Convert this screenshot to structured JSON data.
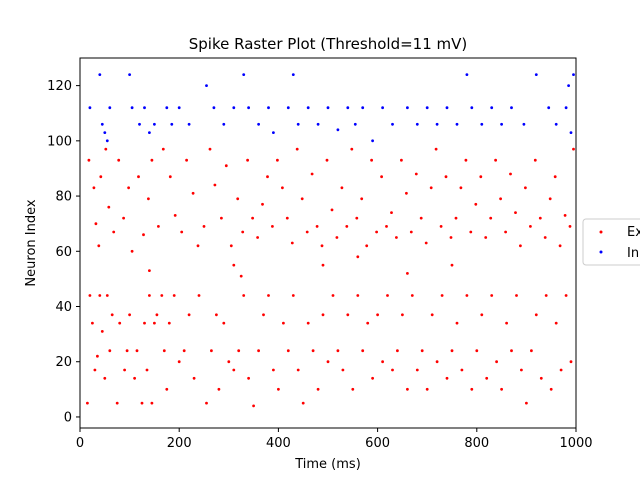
{
  "chart_data": {
    "type": "scatter",
    "title": "Spike Raster Plot (Threshold=11 mV)",
    "xlabel": "Time (ms)",
    "ylabel": "Neuron Index",
    "xlim": [
      0,
      1000
    ],
    "ylim": [
      -4,
      130
    ],
    "xticks": [
      0,
      200,
      400,
      600,
      800,
      1000
    ],
    "yticks": [
      0,
      20,
      40,
      60,
      80,
      100,
      120
    ],
    "grid": false,
    "legend_position": "right",
    "series": [
      {
        "name": "Ex",
        "color": "#ff0000",
        "points": [
          [
            15,
            5
          ],
          [
            20,
            44
          ],
          [
            25,
            34
          ],
          [
            30,
            17
          ],
          [
            35,
            22
          ],
          [
            40,
            44
          ],
          [
            45,
            31
          ],
          [
            50,
            14
          ],
          [
            55,
            44
          ],
          [
            60,
            24
          ],
          [
            65,
            37
          ],
          [
            75,
            5
          ],
          [
            80,
            34
          ],
          [
            90,
            17
          ],
          [
            95,
            24
          ],
          [
            100,
            37
          ],
          [
            110,
            14
          ],
          [
            115,
            24
          ],
          [
            125,
            5
          ],
          [
            130,
            34
          ],
          [
            135,
            17
          ],
          [
            140,
            44
          ],
          [
            145,
            5
          ],
          [
            150,
            34
          ],
          [
            155,
            37
          ],
          [
            165,
            44
          ],
          [
            170,
            24
          ],
          [
            175,
            10
          ],
          [
            180,
            34
          ],
          [
            190,
            44
          ],
          [
            200,
            20
          ],
          [
            210,
            24
          ],
          [
            220,
            37
          ],
          [
            230,
            14
          ],
          [
            240,
            44
          ],
          [
            255,
            5
          ],
          [
            265,
            24
          ],
          [
            275,
            37
          ],
          [
            280,
            10
          ],
          [
            290,
            34
          ],
          [
            300,
            20
          ],
          [
            310,
            17
          ],
          [
            320,
            24
          ],
          [
            330,
            44
          ],
          [
            340,
            14
          ],
          [
            350,
            4
          ],
          [
            360,
            24
          ],
          [
            370,
            37
          ],
          [
            380,
            44
          ],
          [
            390,
            17
          ],
          [
            400,
            10
          ],
          [
            410,
            34
          ],
          [
            420,
            24
          ],
          [
            430,
            44
          ],
          [
            440,
            17
          ],
          [
            450,
            5
          ],
          [
            460,
            34
          ],
          [
            470,
            24
          ],
          [
            480,
            10
          ],
          [
            490,
            37
          ],
          [
            500,
            20
          ],
          [
            510,
            44
          ],
          [
            520,
            24
          ],
          [
            530,
            17
          ],
          [
            540,
            37
          ],
          [
            550,
            10
          ],
          [
            560,
            44
          ],
          [
            570,
            24
          ],
          [
            580,
            34
          ],
          [
            590,
            14
          ],
          [
            600,
            37
          ],
          [
            610,
            20
          ],
          [
            620,
            44
          ],
          [
            630,
            17
          ],
          [
            640,
            24
          ],
          [
            650,
            37
          ],
          [
            660,
            10
          ],
          [
            670,
            44
          ],
          [
            680,
            17
          ],
          [
            690,
            24
          ],
          [
            700,
            10
          ],
          [
            710,
            37
          ],
          [
            720,
            20
          ],
          [
            730,
            44
          ],
          [
            740,
            14
          ],
          [
            750,
            24
          ],
          [
            760,
            34
          ],
          [
            770,
            17
          ],
          [
            780,
            44
          ],
          [
            790,
            10
          ],
          [
            800,
            24
          ],
          [
            810,
            37
          ],
          [
            820,
            14
          ],
          [
            830,
            44
          ],
          [
            840,
            20
          ],
          [
            850,
            10
          ],
          [
            860,
            34
          ],
          [
            870,
            24
          ],
          [
            880,
            44
          ],
          [
            890,
            17
          ],
          [
            900,
            5
          ],
          [
            910,
            24
          ],
          [
            920,
            37
          ],
          [
            930,
            14
          ],
          [
            940,
            44
          ],
          [
            950,
            10
          ],
          [
            960,
            34
          ],
          [
            970,
            17
          ],
          [
            980,
            44
          ],
          [
            990,
            20
          ],
          [
            18,
            93
          ],
          [
            28,
            83
          ],
          [
            32,
            70
          ],
          [
            38,
            62
          ],
          [
            42,
            87
          ],
          [
            52,
            97
          ],
          [
            58,
            76
          ],
          [
            68,
            67
          ],
          [
            78,
            93
          ],
          [
            88,
            72
          ],
          [
            98,
            83
          ],
          [
            105,
            60
          ],
          [
            118,
            87
          ],
          [
            128,
            66
          ],
          [
            138,
            79
          ],
          [
            145,
            93
          ],
          [
            158,
            69
          ],
          [
            168,
            97
          ],
          [
            182,
            87
          ],
          [
            192,
            73
          ],
          [
            205,
            67
          ],
          [
            215,
            93
          ],
          [
            228,
            81
          ],
          [
            238,
            62
          ],
          [
            250,
            69
          ],
          [
            262,
            97
          ],
          [
            272,
            84
          ],
          [
            285,
            72
          ],
          [
            295,
            91
          ],
          [
            305,
            62
          ],
          [
            318,
            79
          ],
          [
            328,
            67
          ],
          [
            338,
            93
          ],
          [
            348,
            72
          ],
          [
            358,
            65
          ],
          [
            368,
            77
          ],
          [
            378,
            87
          ],
          [
            388,
            69
          ],
          [
            398,
            93
          ],
          [
            408,
            83
          ],
          [
            418,
            72
          ],
          [
            428,
            63
          ],
          [
            438,
            97
          ],
          [
            448,
            79
          ],
          [
            458,
            67
          ],
          [
            468,
            88
          ],
          [
            478,
            69
          ],
          [
            488,
            62
          ],
          [
            498,
            93
          ],
          [
            508,
            75
          ],
          [
            518,
            65
          ],
          [
            528,
            83
          ],
          [
            538,
            69
          ],
          [
            548,
            97
          ],
          [
            558,
            72
          ],
          [
            568,
            79
          ],
          [
            578,
            62
          ],
          [
            588,
            93
          ],
          [
            598,
            67
          ],
          [
            608,
            87
          ],
          [
            618,
            69
          ],
          [
            628,
            74
          ],
          [
            638,
            65
          ],
          [
            648,
            93
          ],
          [
            658,
            81
          ],
          [
            668,
            67
          ],
          [
            678,
            88
          ],
          [
            688,
            72
          ],
          [
            698,
            63
          ],
          [
            708,
            83
          ],
          [
            718,
            97
          ],
          [
            728,
            69
          ],
          [
            738,
            87
          ],
          [
            748,
            65
          ],
          [
            758,
            72
          ],
          [
            768,
            83
          ],
          [
            778,
            93
          ],
          [
            788,
            67
          ],
          [
            798,
            77
          ],
          [
            808,
            87
          ],
          [
            818,
            65
          ],
          [
            828,
            72
          ],
          [
            838,
            93
          ],
          [
            848,
            79
          ],
          [
            858,
            67
          ],
          [
            868,
            88
          ],
          [
            878,
            74
          ],
          [
            888,
            62
          ],
          [
            898,
            83
          ],
          [
            908,
            69
          ],
          [
            918,
            93
          ],
          [
            928,
            72
          ],
          [
            938,
            65
          ],
          [
            948,
            79
          ],
          [
            958,
            87
          ],
          [
            968,
            62
          ],
          [
            978,
            73
          ],
          [
            988,
            69
          ],
          [
            995,
            97
          ],
          [
            325,
            51
          ],
          [
            660,
            52
          ],
          [
            750,
            55
          ],
          [
            490,
            55
          ],
          [
            140,
            53
          ],
          [
            560,
            58
          ],
          [
            310,
            55
          ]
        ]
      },
      {
        "name": "In",
        "color": "#0000ff",
        "points": [
          [
            20,
            112
          ],
          [
            40,
            124
          ],
          [
            45,
            106
          ],
          [
            50,
            103
          ],
          [
            55,
            100
          ],
          [
            60,
            112
          ],
          [
            100,
            124
          ],
          [
            105,
            112
          ],
          [
            120,
            106
          ],
          [
            130,
            112
          ],
          [
            140,
            103
          ],
          [
            150,
            106
          ],
          [
            175,
            112
          ],
          [
            185,
            106
          ],
          [
            200,
            112
          ],
          [
            220,
            106
          ],
          [
            255,
            120
          ],
          [
            270,
            112
          ],
          [
            290,
            106
          ],
          [
            310,
            112
          ],
          [
            330,
            124
          ],
          [
            340,
            112
          ],
          [
            360,
            106
          ],
          [
            380,
            112
          ],
          [
            390,
            103
          ],
          [
            420,
            112
          ],
          [
            430,
            124
          ],
          [
            440,
            106
          ],
          [
            460,
            112
          ],
          [
            480,
            106
          ],
          [
            500,
            112
          ],
          [
            520,
            104
          ],
          [
            540,
            112
          ],
          [
            555,
            106
          ],
          [
            570,
            112
          ],
          [
            590,
            100
          ],
          [
            610,
            112
          ],
          [
            630,
            106
          ],
          [
            660,
            112
          ],
          [
            680,
            106
          ],
          [
            700,
            112
          ],
          [
            720,
            106
          ],
          [
            740,
            112
          ],
          [
            760,
            106
          ],
          [
            780,
            124
          ],
          [
            790,
            112
          ],
          [
            810,
            106
          ],
          [
            830,
            112
          ],
          [
            850,
            106
          ],
          [
            870,
            112
          ],
          [
            895,
            106
          ],
          [
            920,
            124
          ],
          [
            945,
            112
          ],
          [
            960,
            106
          ],
          [
            980,
            112
          ],
          [
            985,
            120
          ],
          [
            990,
            103
          ],
          [
            995,
            124
          ]
        ]
      }
    ]
  }
}
